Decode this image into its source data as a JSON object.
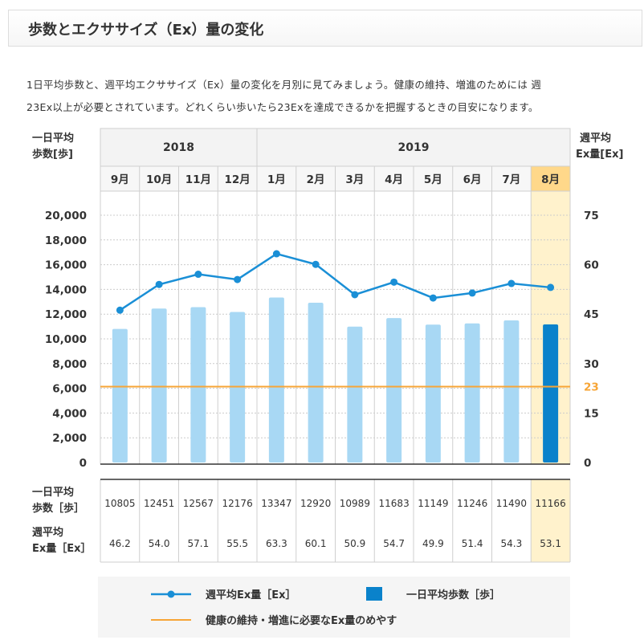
{
  "header": {
    "title": "歩数とエクササイズ（Ex）量の変化"
  },
  "description": {
    "line1": "1日平均歩数と、週平均エクササイズ（Ex）量の変化を月別に見てみましょう。健康の維持、増進のためには 週",
    "line2": "23Ex以上が必要とされています。どれくらい歩いたら23Exを達成できるかを把握するときの目安になります。"
  },
  "chart_data": {
    "type": "bar+line",
    "left_axis_label": [
      "一日平均",
      "歩数[歩]"
    ],
    "right_axis_label": [
      "週平均",
      "Ex量[Ex]"
    ],
    "years": [
      {
        "label": "2018",
        "months": 4
      },
      {
        "label": "2019",
        "months": 8
      }
    ],
    "categories": [
      "9月",
      "10月",
      "11月",
      "12月",
      "1月",
      "2月",
      "3月",
      "4月",
      "5月",
      "6月",
      "7月",
      "8月"
    ],
    "highlight_index": 11,
    "left_ylim": [
      0,
      20000
    ],
    "left_ticks": [
      "0",
      "2,000",
      "4,000",
      "6,000",
      "8,000",
      "10,000",
      "12,000",
      "14,000",
      "16,000",
      "18,000",
      "20,000"
    ],
    "right_ylim": [
      0,
      75
    ],
    "right_ticks": [
      "0",
      "15",
      "30",
      "45",
      "60",
      "75"
    ],
    "reference_line": {
      "value": 23,
      "label": "23",
      "color": "#f7a536"
    },
    "series": [
      {
        "name": "一日平均歩数［歩］",
        "kind": "bar",
        "axis": "left",
        "values": [
          10805,
          12451,
          12567,
          12176,
          13347,
          12920,
          10989,
          11683,
          11149,
          11246,
          11490,
          11166
        ],
        "color": "#a8d8f4",
        "highlight_color": "#0a82cb"
      },
      {
        "name": "週平均Ex量［Ex］",
        "kind": "line",
        "axis": "right",
        "values": [
          46.2,
          54.0,
          57.1,
          55.5,
          63.3,
          60.1,
          50.9,
          54.7,
          49.9,
          51.4,
          54.3,
          53.1
        ],
        "color": "#1a8fd6"
      }
    ],
    "table_rows": [
      {
        "label": [
          "一日平均",
          "歩数［歩］"
        ],
        "values": [
          "10805",
          "12451",
          "12567",
          "12176",
          "13347",
          "12920",
          "10989",
          "11683",
          "11149",
          "11246",
          "11490",
          "11166"
        ]
      },
      {
        "label": [
          "週平均",
          "Ex量［Ex］"
        ],
        "values": [
          "46.2",
          "54.0",
          "57.1",
          "55.5",
          "63.3",
          "60.1",
          "50.9",
          "54.7",
          "49.9",
          "51.4",
          "54.3",
          "53.1"
        ]
      }
    ],
    "legend": {
      "line": "週平均Ex量［Ex］",
      "bar": "一日平均歩数［歩］",
      "reference": "健康の維持・増進に必要なEx量のめやす"
    }
  }
}
